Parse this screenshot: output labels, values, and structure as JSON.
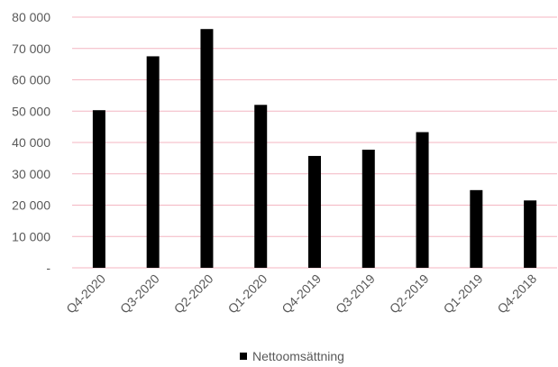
{
  "chart_data": {
    "type": "bar",
    "categories": [
      "Q4-2020",
      "Q3-2020",
      "Q2-2020",
      "Q1-2020",
      "Q4-2019",
      "Q3-2019",
      "Q2-2019",
      "Q1-2019",
      "Q4-2018"
    ],
    "series": [
      {
        "name": "Nettoomsättning",
        "color": "#000000",
        "values": [
          50300,
          67500,
          76200,
          52000,
          35700,
          37700,
          43300,
          24800,
          21500
        ]
      }
    ],
    "ylim": [
      0,
      80000
    ],
    "yticks": [
      0,
      10000,
      20000,
      30000,
      40000,
      50000,
      60000,
      70000,
      80000
    ],
    "ytick_labels": [
      "-",
      "10 000",
      "20 000",
      "30 000",
      "40 000",
      "50 000",
      "60 000",
      "70 000",
      "80 000"
    ],
    "grid": true,
    "grid_color": "#f4b6c2",
    "legend_position": "bottom",
    "title": "",
    "xlabel": "",
    "ylabel": ""
  }
}
